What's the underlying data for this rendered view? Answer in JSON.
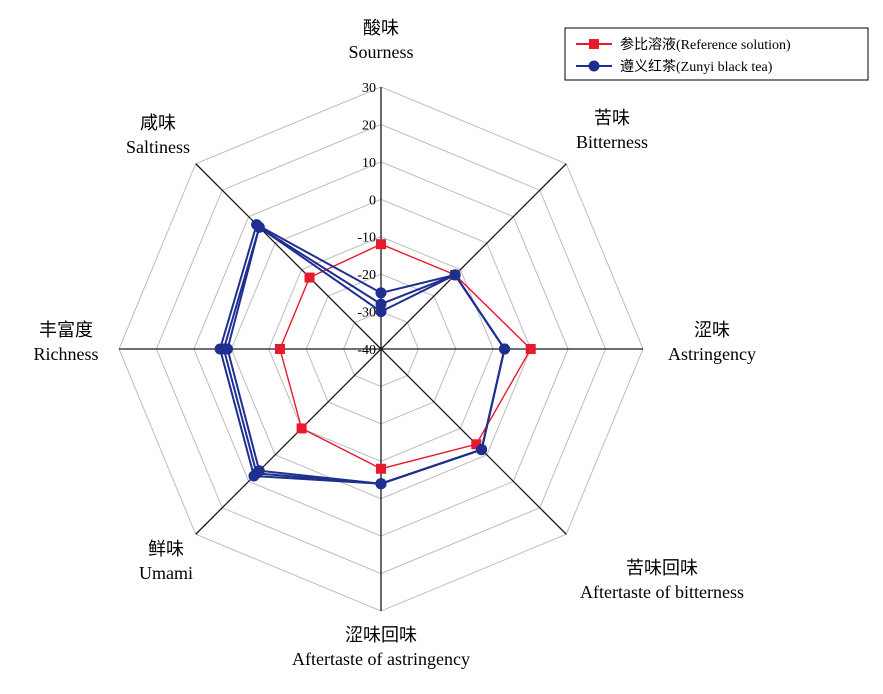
{
  "chart_data": {
    "type": "radar",
    "axes": [
      {
        "cn": "酸味",
        "en": "Sourness"
      },
      {
        "cn": "苦味",
        "en": "Bitterness"
      },
      {
        "cn": "涩味",
        "en": "Astringency"
      },
      {
        "cn": "苦味回味",
        "en": "Aftertaste of bitterness"
      },
      {
        "cn": "涩味回味",
        "en": "Aftertaste of astringency"
      },
      {
        "cn": "鲜味",
        "en": "Umami"
      },
      {
        "cn": "丰富度",
        "en": "Richness"
      },
      {
        "cn": "咸味",
        "en": "Saltiness"
      }
    ],
    "rlim": [
      -40,
      30
    ],
    "ticks": [
      30,
      20,
      10,
      0,
      -10,
      -20,
      -30,
      -40
    ],
    "tick_labels": [
      "30",
      "20",
      "10",
      "0",
      "-10",
      "-20",
      "-30",
      "-40"
    ],
    "grid": true,
    "legend_position": "top-right",
    "series": [
      {
        "name": "参比溶液(Reference solution)",
        "color": "#e8192c",
        "marker": "square",
        "values": [
          -12,
          -12,
          0,
          -4,
          -8,
          -10,
          -13,
          -13
        ]
      },
      {
        "name": "遵义红茶(Zunyi black tea)",
        "color": "#1e2f8f",
        "marker": "circle",
        "replicates": [
          [
            -25,
            -12,
            -7,
            -2,
            -4,
            8,
            3,
            7
          ],
          [
            -28,
            -12,
            -7,
            -2,
            -4,
            7,
            2,
            6
          ],
          [
            -30,
            -12,
            -7,
            -2,
            -4,
            6,
            1,
            6
          ]
        ]
      }
    ]
  }
}
